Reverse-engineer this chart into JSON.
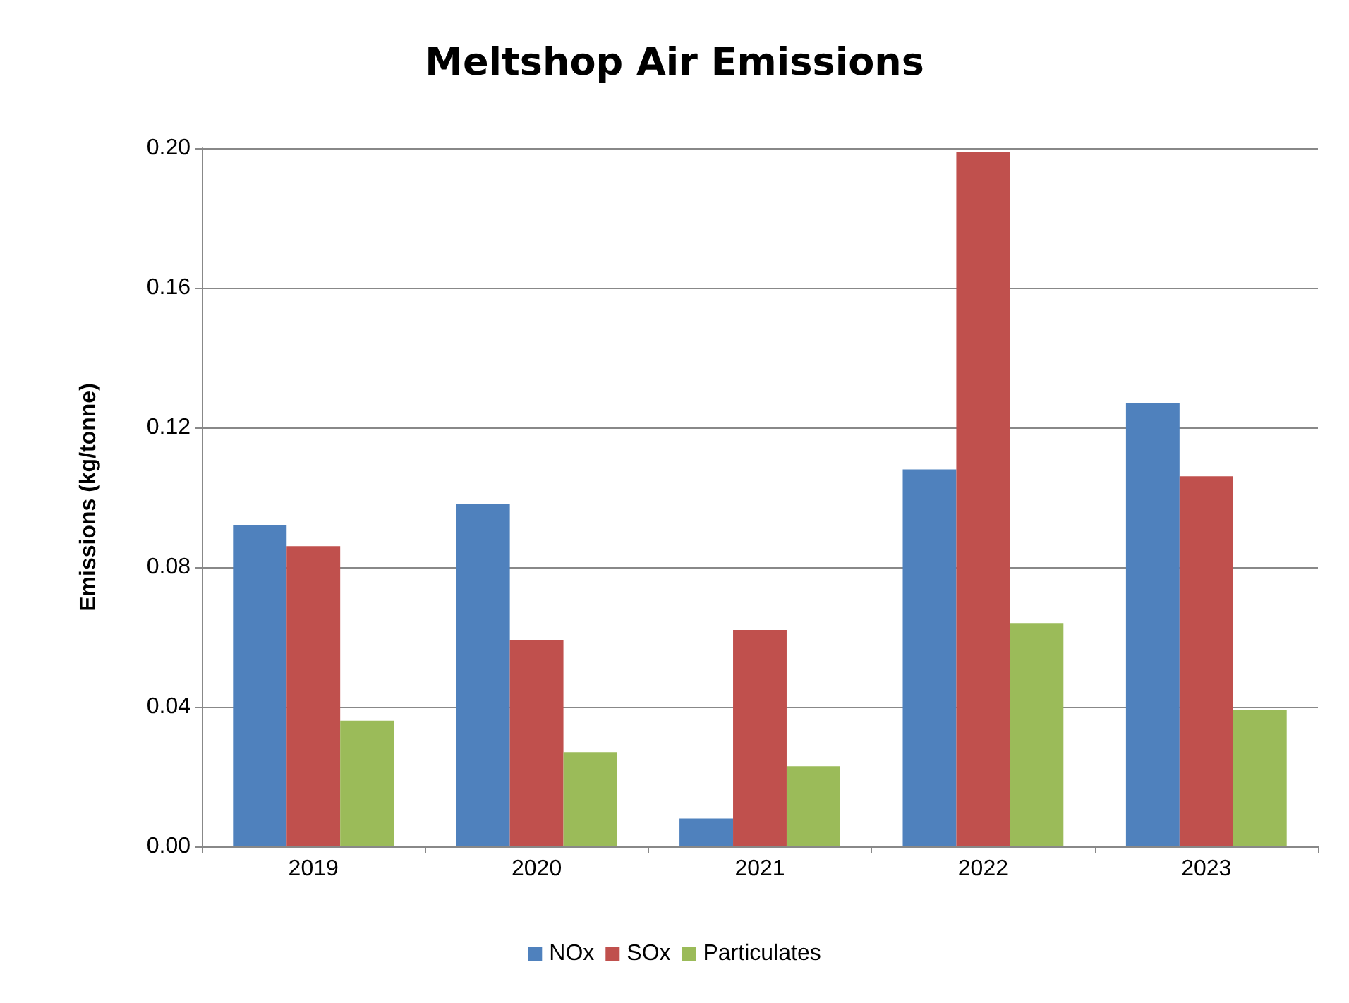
{
  "chart_data": {
    "type": "bar",
    "title": "Meltshop Air Emissions",
    "ylabel": "Emissions (kg/tonne)",
    "categories": [
      "2019",
      "2020",
      "2021",
      "2022",
      "2023"
    ],
    "series": [
      {
        "name": "NOx",
        "color": "#4f81bd",
        "values": [
          0.092,
          0.098,
          0.008,
          0.108,
          0.127
        ]
      },
      {
        "name": "SOx",
        "color": "#c0504d",
        "values": [
          0.086,
          0.059,
          0.062,
          0.199,
          0.106
        ]
      },
      {
        "name": "Particulates",
        "color": "#9bbb59",
        "values": [
          0.036,
          0.027,
          0.023,
          0.064,
          0.039
        ]
      }
    ],
    "ylim": [
      0,
      0.2
    ],
    "yticks": [
      {
        "value": 0,
        "label": "0.00"
      },
      {
        "value": 0.04,
        "label": "0.04"
      },
      {
        "value": 0.08,
        "label": "0.08"
      },
      {
        "value": 0.12,
        "label": "0.12"
      },
      {
        "value": 0.16,
        "label": "0.16"
      },
      {
        "value": 0.2,
        "label": "0.20"
      }
    ],
    "grid": "y",
    "legend": "bottom"
  }
}
